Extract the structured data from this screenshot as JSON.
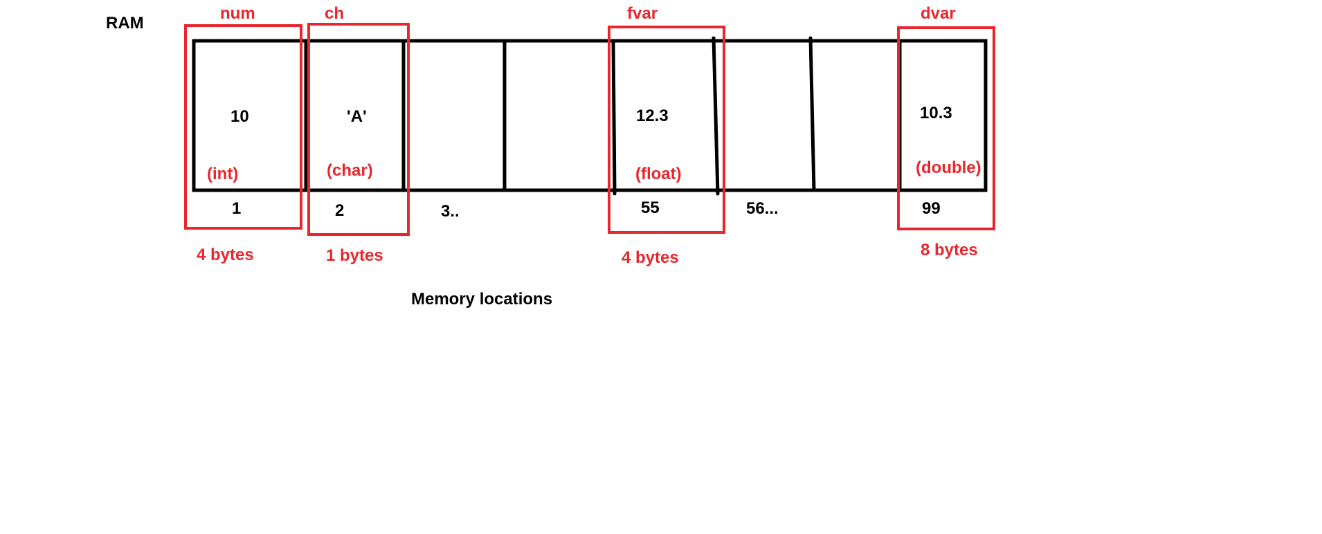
{
  "title": "RAM",
  "caption": "Memory locations",
  "colors": {
    "line": "#000000",
    "highlight": "#e8262e"
  },
  "variables": [
    {
      "name": "num",
      "value": "10",
      "type": "(int)",
      "address": "1",
      "size": "4 bytes"
    },
    {
      "name": "ch",
      "value": "'A'",
      "type": "(char)",
      "address": "2",
      "size": "1 bytes"
    },
    {
      "name": "fvar",
      "value": "12.3",
      "type": "(float)",
      "address": "55",
      "size": "4 bytes"
    },
    {
      "name": "dvar",
      "value": "10.3",
      "type": "(double)",
      "address": "99",
      "size": "8 bytes"
    }
  ],
  "other_addresses": [
    {
      "label": "3.."
    },
    {
      "label": "56..."
    }
  ]
}
